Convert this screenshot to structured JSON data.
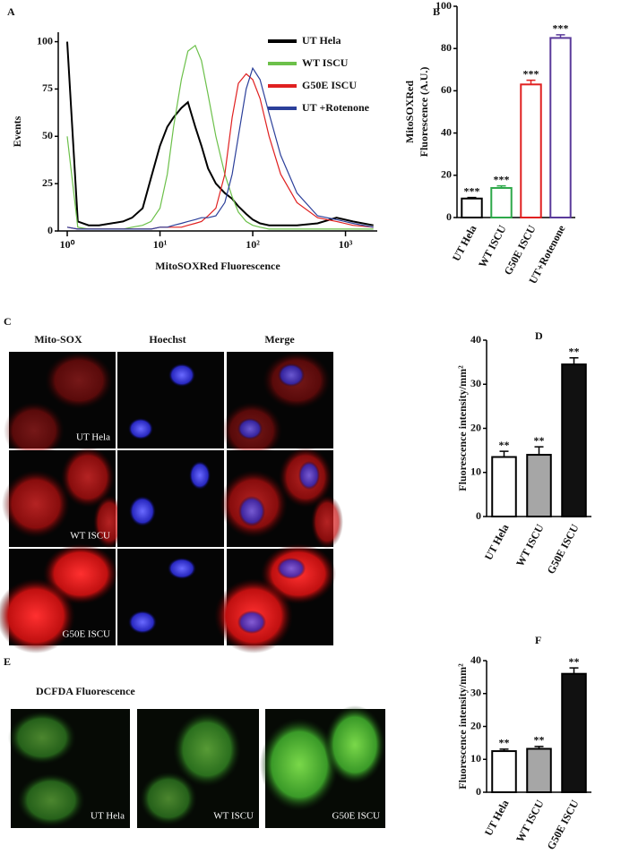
{
  "panel_labels": [
    "A",
    "B",
    "C",
    "D",
    "E",
    "F"
  ],
  "chart_data": [
    {
      "type": "line",
      "xlabel": "MitoSOXRed Fluorescence",
      "ylabel": "Events",
      "xscale": "log",
      "xlim": [
        0.8,
        2200
      ],
      "xticks": [
        {
          "value": 1,
          "label": "10⁰"
        },
        {
          "value": 10,
          "label": "10¹"
        },
        {
          "value": 100,
          "label": "10²"
        },
        {
          "value": 1000,
          "label": "10³"
        }
      ],
      "ylim": [
        0,
        105
      ],
      "yticks": [
        0,
        25,
        50,
        75,
        100
      ],
      "legend": "upper right",
      "x": [
        1,
        1.3,
        1.7,
        2.2,
        3,
        4,
        5,
        6.5,
        8,
        10,
        12,
        14,
        17,
        20,
        24,
        28,
        33,
        40,
        50,
        60,
        70,
        85,
        100,
        120,
        150,
        200,
        300,
        500,
        800,
        1200,
        2000
      ],
      "series": [
        {
          "name": "UT Hela",
          "color": "#000000",
          "values": [
            100,
            5,
            3,
            3,
            4,
            5,
            7,
            12,
            28,
            45,
            55,
            60,
            65,
            68,
            55,
            45,
            33,
            25,
            20,
            17,
            13,
            9,
            6,
            4,
            3,
            3,
            3,
            4,
            7,
            5,
            3
          ]
        },
        {
          "name": "WT ISCU",
          "color": "#6cc04a",
          "values": [
            50,
            2,
            1,
            1,
            1,
            1,
            2,
            3,
            5,
            12,
            30,
            55,
            80,
            95,
            98,
            90,
            72,
            50,
            30,
            18,
            10,
            5,
            3,
            2,
            1,
            1,
            1,
            1,
            1,
            1,
            1
          ]
        },
        {
          "name": "G50E ISCU",
          "color": "#e02020",
          "values": [
            2,
            1,
            1,
            1,
            1,
            1,
            1,
            1,
            1,
            2,
            2,
            2,
            2,
            3,
            4,
            5,
            8,
            12,
            30,
            60,
            78,
            83,
            80,
            70,
            50,
            30,
            15,
            7,
            5,
            3,
            2
          ]
        },
        {
          "name": "UT +Rotenone",
          "color": "#2b3f9a",
          "values": [
            2,
            1,
            1,
            1,
            1,
            1,
            1,
            1,
            1,
            2,
            2,
            3,
            4,
            5,
            6,
            7,
            7,
            8,
            15,
            30,
            50,
            75,
            86,
            80,
            62,
            40,
            20,
            8,
            6,
            4,
            2
          ]
        }
      ]
    },
    {
      "type": "bar",
      "ylabel": [
        "MitoSOXRed",
        "Fluorescence (A.U.)"
      ],
      "categories": [
        "UT Hela",
        "WT ISCU",
        "G50E ISCU",
        "UT+Rotenone"
      ],
      "values": [
        9,
        14,
        63,
        85
      ],
      "errors": [
        0.5,
        1,
        2,
        1.5
      ],
      "annotations": [
        "***",
        "***",
        "***",
        "***"
      ],
      "colors": [
        "#000000",
        "#2ea84a",
        "#e02020",
        "#5a3a9a"
      ],
      "fill": "#ffffff",
      "ylim": [
        0,
        100
      ],
      "yticks": [
        0,
        20,
        40,
        60,
        80,
        100
      ]
    },
    {
      "type": "bar",
      "ylabel": "Fluorescence intensity/mm²",
      "categories": [
        "UT Hela",
        "WT ISCU",
        "G50E ISCU"
      ],
      "values": [
        13.5,
        14,
        34.5
      ],
      "errors": [
        1.3,
        1.8,
        1.5
      ],
      "annotations": [
        "**",
        "**",
        "**"
      ],
      "colors": [
        "#ffffff",
        "#a6a6a6",
        "#111111"
      ],
      "edgecolor": "#000000",
      "ylim": [
        0,
        40
      ],
      "yticks": [
        0,
        10,
        20,
        30,
        40
      ]
    },
    {
      "type": "bar",
      "ylabel": "Fluorescence intensity/mm²",
      "categories": [
        "UT Hela",
        "WT ISCU",
        "G50E ISCU"
      ],
      "values": [
        12.5,
        13.2,
        36
      ],
      "errors": [
        0.6,
        0.7,
        1.8
      ],
      "annotations": [
        "**",
        "**",
        "**"
      ],
      "colors": [
        "#ffffff",
        "#a6a6a6",
        "#111111"
      ],
      "edgecolor": "#000000",
      "ylim": [
        0,
        40
      ],
      "yticks": [
        0,
        10,
        20,
        30,
        40
      ]
    }
  ],
  "panel_c": {
    "columns": [
      "Mito-SOX",
      "Hoechst",
      "Merge"
    ],
    "rows": [
      "UT Hela",
      "WT ISCU",
      "G50E ISCU"
    ]
  },
  "panel_e": {
    "title": "DCFDA Fluorescence",
    "images": [
      "UT Hela",
      "WT ISCU",
      "G50E ISCU"
    ]
  }
}
